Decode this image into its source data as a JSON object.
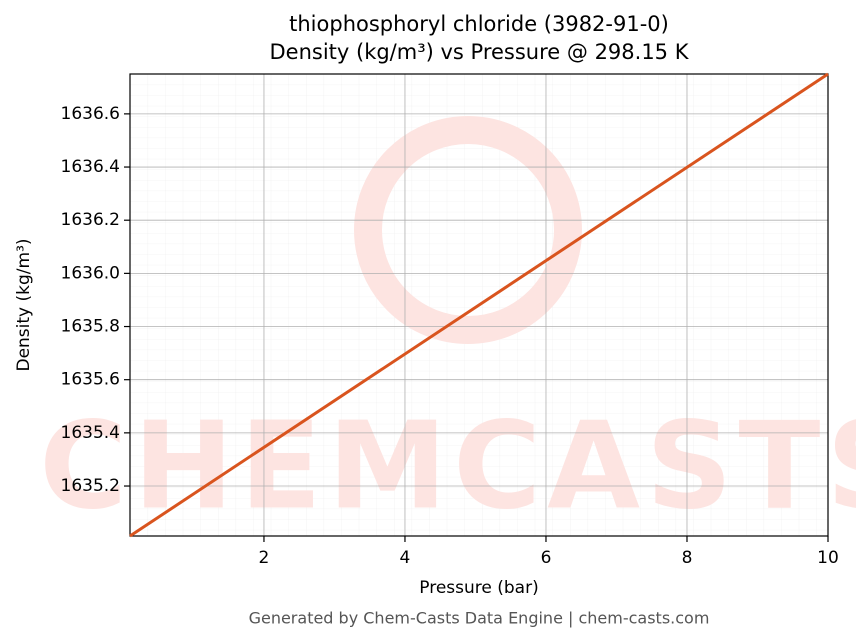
{
  "chart_data": {
    "type": "line",
    "title": "thiophosphoryl chloride (3982-91-0)",
    "subtitle": "Density (kg/m³) vs Pressure @ 298.15 K",
    "x_label": "Pressure (bar)",
    "y_label": "Density (kg/m³)",
    "footer": "Generated by Chem-Casts Data Engine | chem-casts.com",
    "watermark": "CHEMCASTS",
    "x": [
      0.1,
      10
    ],
    "series": [
      {
        "name": "Density",
        "color": "#d9541e",
        "values": [
          1635.012,
          1636.75
        ]
      }
    ],
    "xlim": [
      0.1,
      10
    ],
    "ylim": [
      1635.012,
      1636.75
    ],
    "xticks": [
      2,
      4,
      6,
      8,
      10
    ],
    "yticks": [
      1635.2,
      1635.4,
      1635.6,
      1635.8,
      {
        "value": 1636.0,
        "label": "1636.0"
      },
      1636.2,
      1636.4,
      1636.6
    ],
    "grid": true
  }
}
